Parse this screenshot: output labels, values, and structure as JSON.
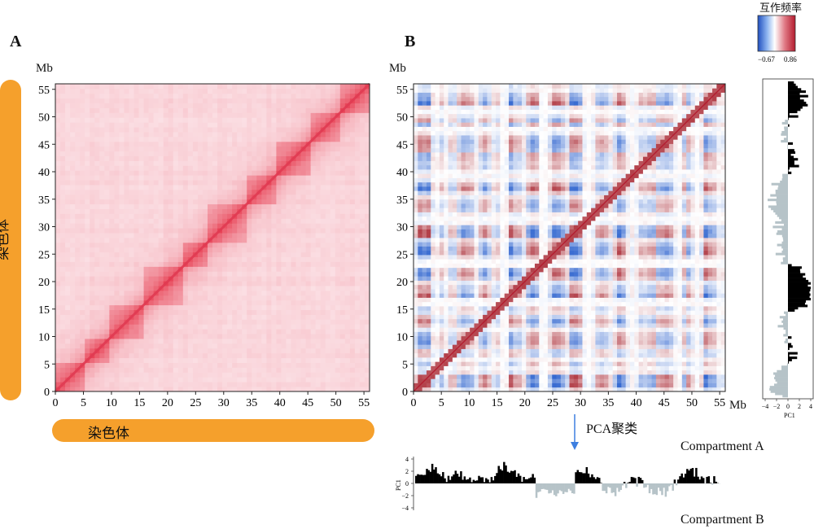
{
  "panels": {
    "a": {
      "letter": "A",
      "unit": "Mb",
      "axis_ticks": [
        "0",
        "5",
        "10",
        "15",
        "20",
        "25",
        "30",
        "35",
        "40",
        "45",
        "50",
        "55"
      ],
      "axis_pill_label": "染色体"
    },
    "b": {
      "letter": "B",
      "unit_top": "Mb",
      "unit_right": "Mb",
      "axis_ticks": [
        "0",
        "5",
        "10",
        "15",
        "20",
        "25",
        "30",
        "35",
        "40",
        "45",
        "50",
        "55"
      ]
    }
  },
  "colorbar": {
    "title": "互作频率",
    "min_label": "−0.67",
    "max_label": "0.86",
    "colors": [
      "#1f4fbf",
      "#ffffff",
      "#b31b2e"
    ]
  },
  "pc1_side": {
    "ticks": [
      "−4",
      "−2",
      "0",
      "2",
      "4"
    ],
    "xlabel": "PC1"
  },
  "flow": {
    "label": "PCA聚类"
  },
  "compartment": {
    "label_a": "Compartment A",
    "label_b": "Compartment B",
    "ylabel": "PC1",
    "ticks": [
      "4",
      "2",
      "0",
      "−2",
      "−4"
    ]
  },
  "colors": {
    "pill": "#f5a02c",
    "compA": "#000000",
    "compB": "#b6c3c8",
    "contact": "#e8455c",
    "arrow": "#3d7fe0"
  }
}
